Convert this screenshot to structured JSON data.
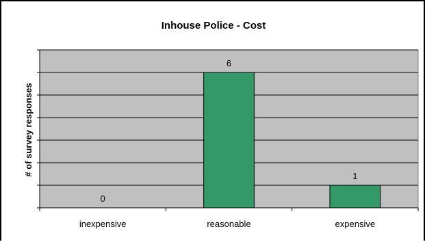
{
  "chart_data": {
    "type": "bar",
    "title": "Inhouse Police - Cost",
    "ylabel": "# of survey responses",
    "xlabel": "",
    "categories": [
      "inexpensive",
      "reasonable",
      "expensive"
    ],
    "values": [
      0,
      6,
      1
    ],
    "data_labels": [
      "0",
      "6",
      "1"
    ],
    "ylim": [
      0,
      7
    ],
    "grid": true,
    "colors": {
      "plot_bg": "#c0c0c0",
      "bar": "#339966",
      "gridline": "#000000"
    }
  }
}
